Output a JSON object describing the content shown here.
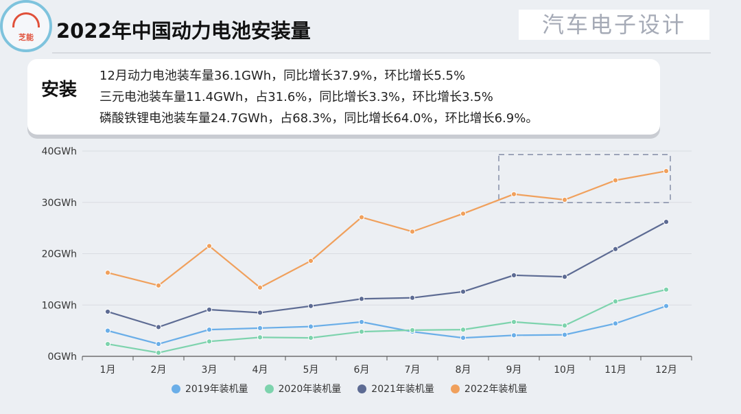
{
  "logo": {
    "text": "芝能"
  },
  "title": "2022年中国动力电池安装量",
  "watermark": "汽车电子设计",
  "summary": {
    "tag": "安装",
    "lines": [
      "12月动力电池装车量36.1GWh，同比增长37.9%，环比增长5.5%",
      "三元电池装车量11.4GWh，占31.6%，同比增长3.3%，环比增长3.5%",
      "磷酸铁锂电池装车量24.7GWh，占68.3%，同比增长64.0%，环比增长6.9%。"
    ]
  },
  "colors": {
    "2019": "#6aaee8",
    "2020": "#7dd3ad",
    "2021": "#5d6b93",
    "2022": "#f0a05c"
  },
  "chart_data": {
    "type": "line",
    "categories": [
      "1月",
      "2月",
      "3月",
      "4月",
      "5月",
      "6月",
      "7月",
      "8月",
      "9月",
      "10月",
      "11月",
      "12月"
    ],
    "y_ticks": [
      "0GWh",
      "10GWh",
      "20GWh",
      "30GWh",
      "40GWh"
    ],
    "ylim": [
      0,
      40
    ],
    "grid": true,
    "highlight_range": {
      "from": "9月",
      "to": "12月"
    },
    "series": [
      {
        "name": "2019年装机量",
        "color": "#6aaee8",
        "values": [
          5.0,
          2.4,
          5.2,
          5.5,
          5.8,
          6.7,
          4.8,
          3.6,
          4.1,
          4.2,
          6.4,
          9.8
        ]
      },
      {
        "name": "2020年装机量",
        "color": "#7dd3ad",
        "values": [
          2.4,
          0.7,
          2.9,
          3.7,
          3.6,
          4.8,
          5.1,
          5.2,
          6.7,
          6.0,
          10.7,
          13.0
        ]
      },
      {
        "name": "2021年装机量",
        "color": "#5d6b93",
        "values": [
          8.7,
          5.7,
          9.1,
          8.5,
          9.8,
          11.2,
          11.4,
          12.6,
          15.8,
          15.5,
          20.9,
          26.2
        ]
      },
      {
        "name": "2022年装机量",
        "color": "#f0a05c",
        "values": [
          16.3,
          13.8,
          21.5,
          13.4,
          18.6,
          27.1,
          24.3,
          27.8,
          31.6,
          30.5,
          34.3,
          36.1
        ]
      }
    ]
  }
}
